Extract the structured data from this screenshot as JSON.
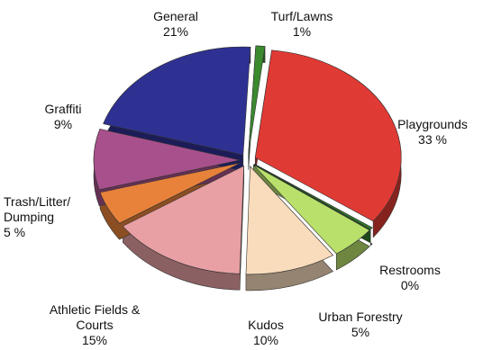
{
  "chart_data": {
    "type": "pie",
    "style": "3d-exploded",
    "slices": [
      {
        "label": "Turf/Lawns",
        "value_text": "1%",
        "value": 1,
        "color": "#3a8a2e"
      },
      {
        "label": "Playgrounds",
        "value_text": "33 %",
        "value": 33,
        "color": "#e03a34"
      },
      {
        "label": "Restrooms",
        "value_text": "0%",
        "value": 0,
        "color": "#2f7a2a"
      },
      {
        "label": "Urban Forestry",
        "value_text": "5%",
        "value": 5,
        "color": "#b8e06a"
      },
      {
        "label": "Kudos",
        "value_text": "10%",
        "value": 10,
        "color": "#f9dcbc"
      },
      {
        "label": "Athletic Fields &\nCourts",
        "value_text": "15%",
        "value": 15,
        "color": "#e8a0a4"
      },
      {
        "label": "Trash/Litter/\nDumping",
        "value_text": "5 %",
        "value": 5,
        "color": "#e8823a"
      },
      {
        "label": "Graffiti",
        "value_text": "9%",
        "value": 9,
        "color": "#a8508c"
      },
      {
        "label": "General",
        "value_text": "21%",
        "value": 21,
        "color": "#2e3192"
      }
    ]
  }
}
